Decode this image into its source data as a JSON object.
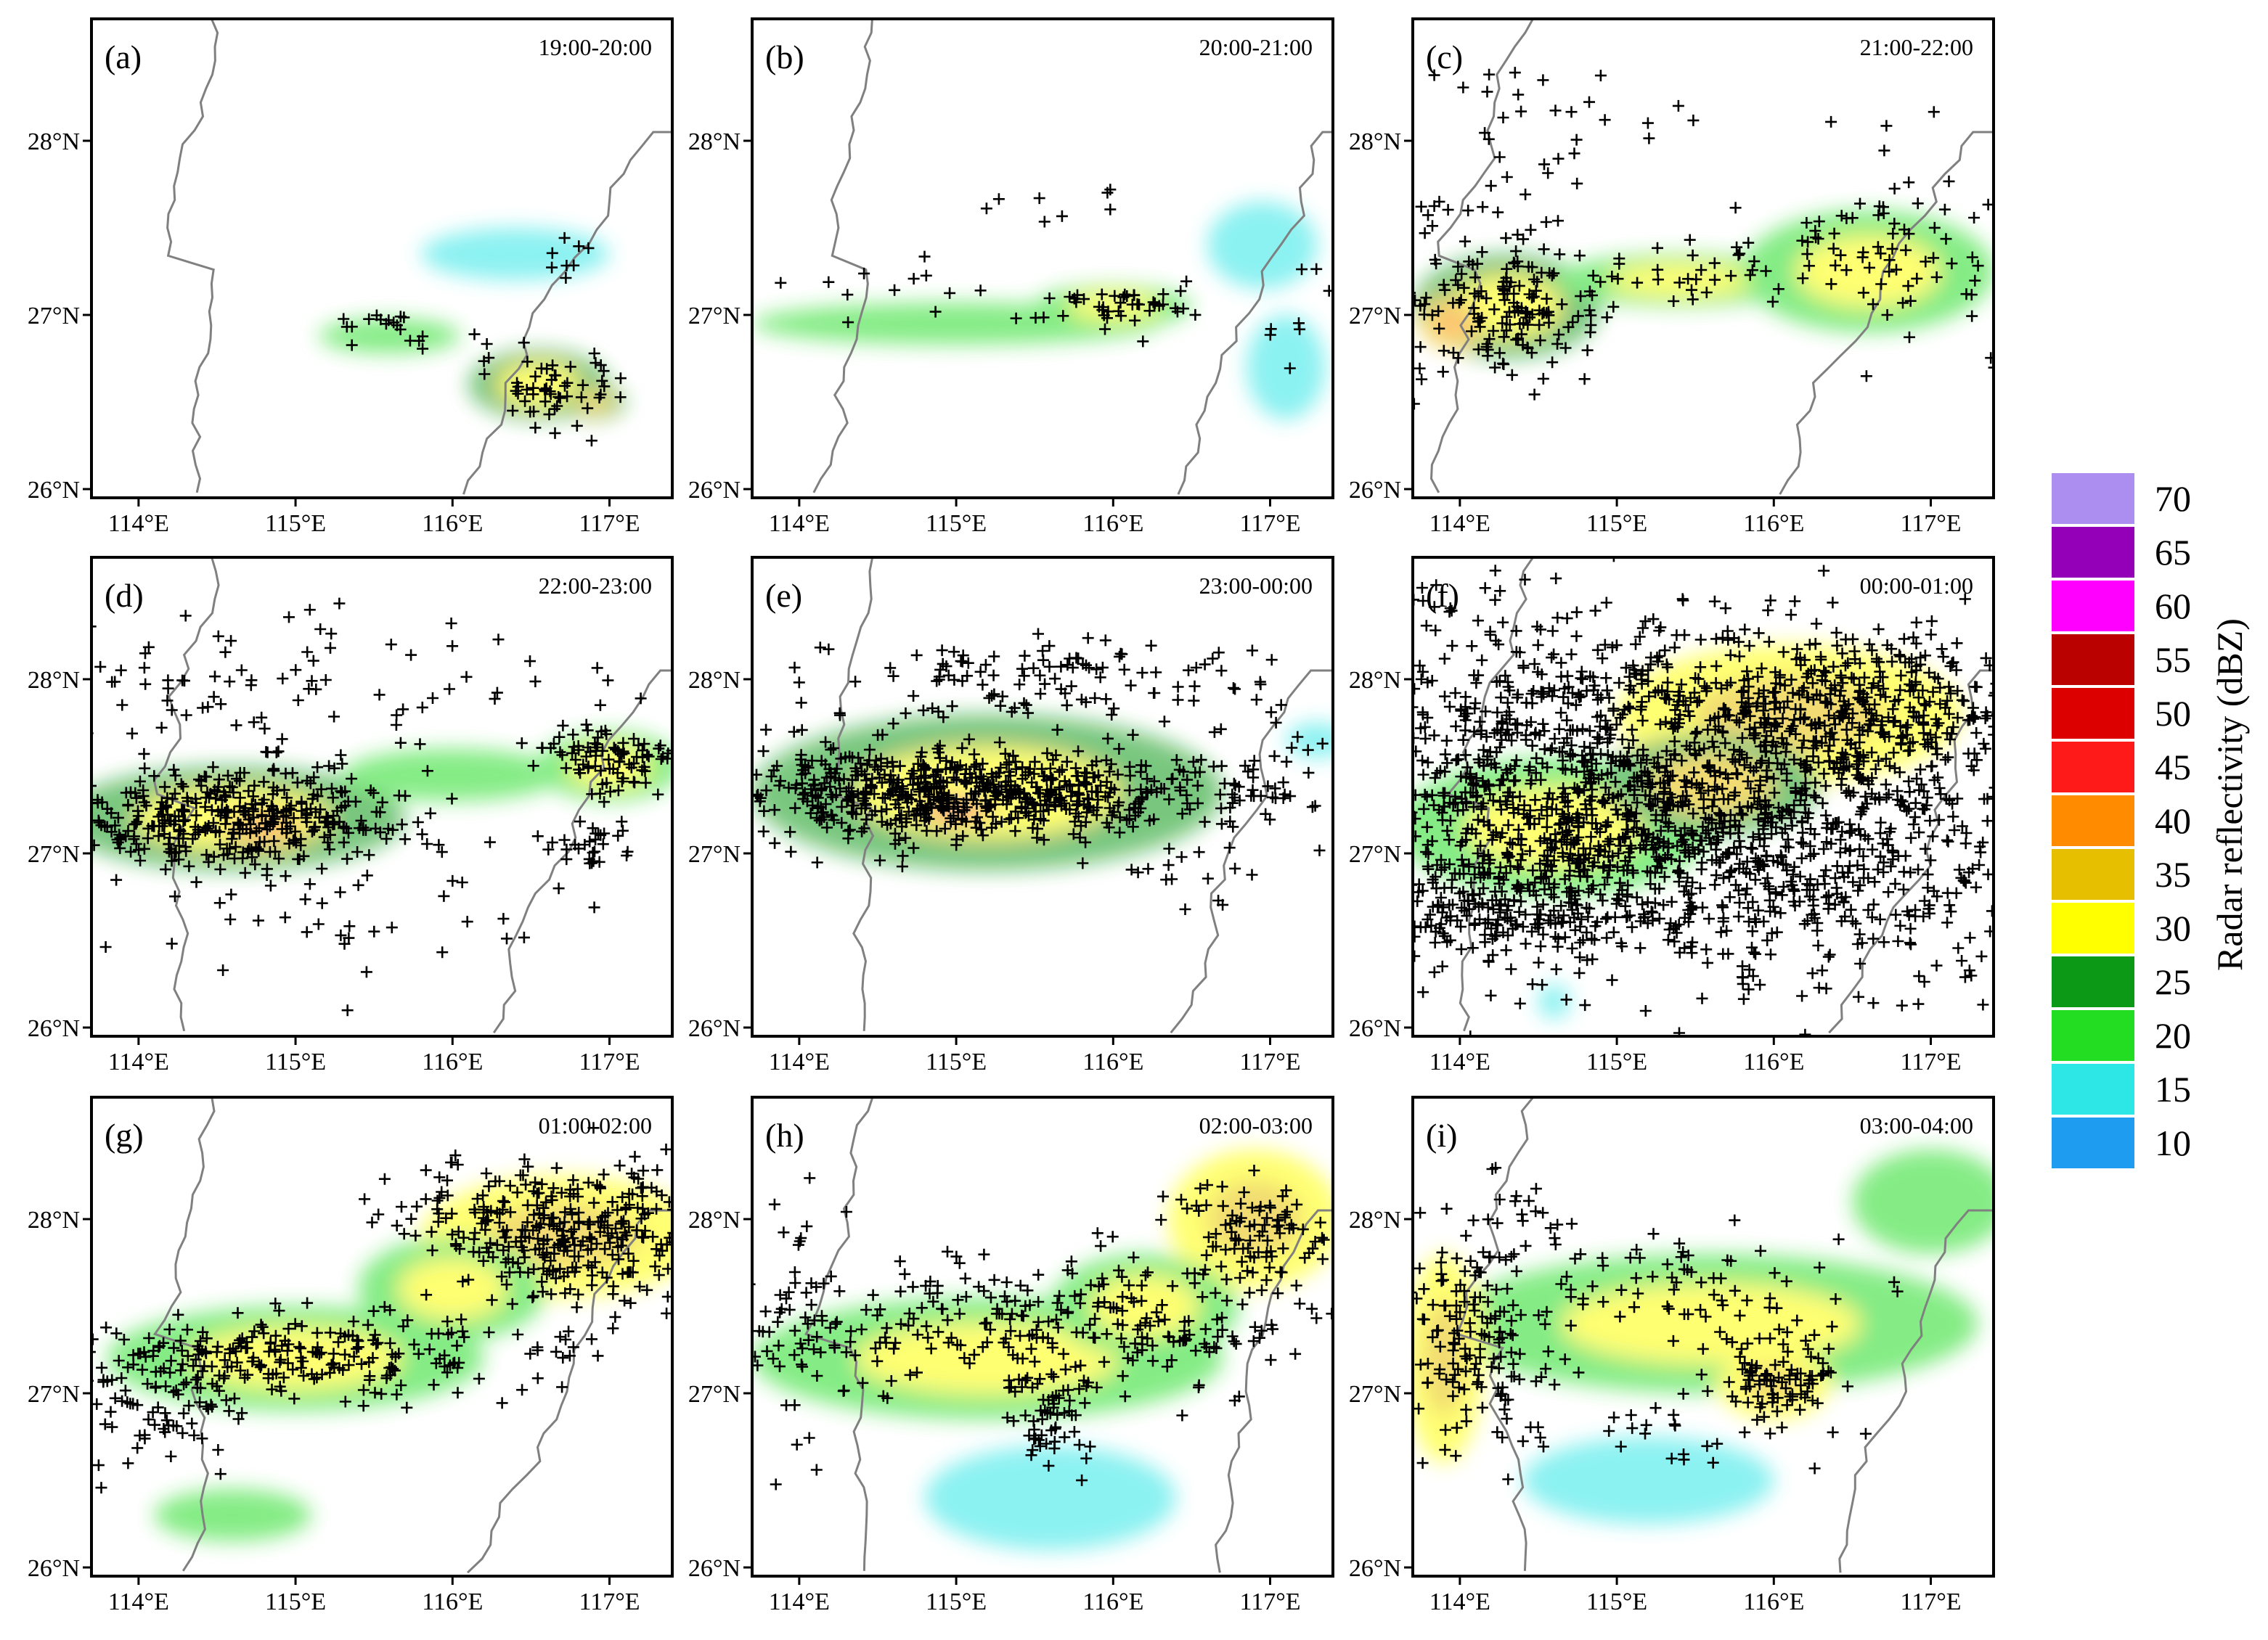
{
  "figure": {
    "colorbar": {
      "title": "Radar reflectivity (dBZ)",
      "levels": [
        {
          "value": "10",
          "color": "#1e9df0"
        },
        {
          "value": "15",
          "color": "#2de6e6"
        },
        {
          "value": "20",
          "color": "#22dd22"
        },
        {
          "value": "25",
          "color": "#0c9a16"
        },
        {
          "value": "30",
          "color": "#ffff00"
        },
        {
          "value": "35",
          "color": "#e6bf00"
        },
        {
          "value": "40",
          "color": "#ff8c00"
        },
        {
          "value": "45",
          "color": "#ff1a1a"
        },
        {
          "value": "50",
          "color": "#dd0000"
        },
        {
          "value": "55",
          "color": "#bb0000"
        },
        {
          "value": "60",
          "color": "#ff00ff"
        },
        {
          "value": "65",
          "color": "#9400b8"
        },
        {
          "value": "70",
          "color": "#ab8ef0"
        }
      ]
    },
    "axes": {
      "lon_ticks": [
        "114°E",
        "115°E",
        "116°E",
        "117°E"
      ],
      "lon_values": [
        114,
        115,
        116,
        117
      ],
      "lat_ticks": [
        "26°N",
        "27°N",
        "28°N"
      ],
      "lat_values": [
        26,
        27,
        28
      ],
      "lon_range": [
        113.7,
        117.4
      ],
      "lat_range": [
        25.95,
        28.7
      ]
    },
    "panels": [
      {
        "label": "(a)",
        "time": "19:00-20:00",
        "lightning_count": 90,
        "echo": [
          {
            "lon": 115.6,
            "lat": 26.88,
            "rlon": 0.45,
            "rlat": 0.1,
            "dbz": 20
          },
          {
            "lon": 116.55,
            "lat": 26.6,
            "rlon": 0.45,
            "rlat": 0.2,
            "dbz": 25
          },
          {
            "lon": 116.4,
            "lat": 27.35,
            "rlon": 0.6,
            "rlat": 0.15,
            "dbz": 18
          },
          {
            "lon": 116.9,
            "lat": 26.5,
            "rlon": 0.2,
            "rlat": 0.1,
            "dbz": 28
          }
        ],
        "strikes": [
          {
            "lon": 116.6,
            "lat": 26.6,
            "slon": 0.25,
            "slat": 0.12,
            "n": 55
          },
          {
            "lon": 115.5,
            "lat": 26.93,
            "slon": 0.2,
            "slat": 0.05,
            "n": 14
          },
          {
            "lon": 116.7,
            "lat": 27.3,
            "slon": 0.1,
            "slat": 0.12,
            "n": 8
          },
          {
            "lon": 116.0,
            "lat": 26.85,
            "slon": 0.15,
            "slat": 0.1,
            "n": 6
          }
        ]
      },
      {
        "label": "(b)",
        "time": "20:00-21:00",
        "lightning_count": 80,
        "echo": [
          {
            "lon": 115.0,
            "lat": 26.95,
            "rlon": 1.3,
            "rlat": 0.12,
            "dbz": 20
          },
          {
            "lon": 116.0,
            "lat": 27.05,
            "rlon": 0.5,
            "rlat": 0.12,
            "dbz": 24
          },
          {
            "lon": 116.95,
            "lat": 27.4,
            "rlon": 0.35,
            "rlat": 0.25,
            "dbz": 18
          },
          {
            "lon": 117.1,
            "lat": 26.7,
            "rlon": 0.25,
            "rlat": 0.3,
            "dbz": 18
          }
        ],
        "strikes": [
          {
            "lon": 116.05,
            "lat": 27.05,
            "slon": 0.25,
            "slat": 0.06,
            "n": 45
          },
          {
            "lon": 114.8,
            "lat": 27.15,
            "slon": 0.4,
            "slat": 0.08,
            "n": 12
          },
          {
            "lon": 115.7,
            "lat": 27.65,
            "slon": 0.25,
            "slat": 0.08,
            "n": 8
          },
          {
            "lon": 117.1,
            "lat": 26.9,
            "slon": 0.15,
            "slat": 0.3,
            "n": 8
          }
        ]
      },
      {
        "label": "(c)",
        "time": "21:00-22:00",
        "lightning_count": 320,
        "echo": [
          {
            "lon": 114.3,
            "lat": 27.05,
            "rlon": 0.6,
            "rlat": 0.3,
            "dbz": 25
          },
          {
            "lon": 115.4,
            "lat": 27.2,
            "rlon": 0.8,
            "rlat": 0.15,
            "dbz": 22
          },
          {
            "lon": 116.6,
            "lat": 27.25,
            "rlon": 0.8,
            "rlat": 0.35,
            "dbz": 22
          },
          {
            "lon": 113.95,
            "lat": 26.95,
            "rlon": 0.2,
            "rlat": 0.15,
            "dbz": 35
          }
        ],
        "strikes": [
          {
            "lon": 114.25,
            "lat": 27.05,
            "slon": 0.35,
            "slat": 0.2,
            "n": 170
          },
          {
            "lon": 116.7,
            "lat": 27.35,
            "slon": 0.45,
            "slat": 0.25,
            "n": 80
          },
          {
            "lon": 115.4,
            "lat": 27.25,
            "slon": 0.45,
            "slat": 0.1,
            "n": 30
          },
          {
            "lon": 114.2,
            "lat": 27.9,
            "slon": 0.3,
            "slat": 0.25,
            "n": 30
          },
          {
            "lon": 115.8,
            "lat": 28.1,
            "slon": 0.8,
            "slat": 0.1,
            "n": 10
          }
        ]
      },
      {
        "label": "(d)",
        "time": "22:00-23:00",
        "lightning_count": 650,
        "echo": [
          {
            "lon": 114.6,
            "lat": 27.2,
            "rlon": 1.1,
            "rlat": 0.3,
            "dbz": 25
          },
          {
            "lon": 116.0,
            "lat": 27.45,
            "rlon": 0.7,
            "rlat": 0.15,
            "dbz": 20
          },
          {
            "lon": 117.0,
            "lat": 27.5,
            "rlon": 0.45,
            "rlat": 0.2,
            "dbz": 22
          },
          {
            "lon": 114.8,
            "lat": 27.15,
            "rlon": 0.3,
            "rlat": 0.12,
            "dbz": 35
          }
        ],
        "strikes": [
          {
            "lon": 114.6,
            "lat": 27.2,
            "slon": 0.6,
            "slat": 0.15,
            "n": 380
          },
          {
            "lon": 117.0,
            "lat": 27.55,
            "slon": 0.25,
            "slat": 0.1,
            "n": 90
          },
          {
            "lon": 116.85,
            "lat": 27.05,
            "slon": 0.15,
            "slat": 0.08,
            "n": 30
          },
          {
            "lon": 114.5,
            "lat": 27.8,
            "slon": 0.8,
            "slat": 0.3,
            "n": 90
          },
          {
            "lon": 115.3,
            "lat": 26.7,
            "slon": 0.8,
            "slat": 0.2,
            "n": 40
          },
          {
            "lon": 116.3,
            "lat": 28.0,
            "slon": 0.8,
            "slat": 0.15,
            "n": 20
          }
        ]
      },
      {
        "label": "(e)",
        "time": "23:00-00:00",
        "lightning_count": 900,
        "echo": [
          {
            "lon": 115.2,
            "lat": 27.35,
            "rlon": 1.5,
            "rlat": 0.45,
            "dbz": 25
          },
          {
            "lon": 115.0,
            "lat": 27.25,
            "rlon": 0.3,
            "rlat": 0.1,
            "dbz": 38
          },
          {
            "lon": 117.3,
            "lat": 27.65,
            "rlon": 0.2,
            "rlat": 0.1,
            "dbz": 18
          }
        ],
        "strikes": [
          {
            "lon": 115.2,
            "lat": 27.35,
            "slon": 0.9,
            "slat": 0.12,
            "n": 650
          },
          {
            "lon": 115.7,
            "lat": 28.0,
            "slon": 0.7,
            "slat": 0.12,
            "n": 120
          },
          {
            "lon": 114.3,
            "lat": 27.4,
            "slon": 0.4,
            "slat": 0.2,
            "n": 60
          },
          {
            "lon": 116.4,
            "lat": 26.9,
            "slon": 0.3,
            "slat": 0.2,
            "n": 20
          },
          {
            "lon": 117.2,
            "lat": 27.6,
            "slon": 0.15,
            "slat": 0.08,
            "n": 8
          }
        ]
      },
      {
        "label": "(f)",
        "time": "00:00-01:00",
        "lightning_count": 2400,
        "echo": [
          {
            "lon": 116.1,
            "lat": 27.8,
            "rlon": 1.1,
            "rlat": 0.4,
            "dbz": 30
          },
          {
            "lon": 114.6,
            "lat": 27.15,
            "rlon": 1.0,
            "rlat": 0.4,
            "dbz": 24
          },
          {
            "lon": 115.6,
            "lat": 27.4,
            "rlon": 0.7,
            "rlat": 0.3,
            "dbz": 28
          },
          {
            "lon": 114.6,
            "lat": 26.15,
            "rlon": 0.1,
            "rlat": 0.1,
            "dbz": 18
          }
        ],
        "strikes": [
          {
            "lon": 116.3,
            "lat": 27.8,
            "slon": 0.9,
            "slat": 0.25,
            "n": 700
          },
          {
            "lon": 115.0,
            "lat": 27.2,
            "slon": 1.0,
            "slat": 0.25,
            "n": 500
          },
          {
            "lon": 116.1,
            "lat": 26.9,
            "slon": 1.1,
            "slat": 0.35,
            "n": 600
          },
          {
            "lon": 114.3,
            "lat": 27.7,
            "slon": 0.6,
            "slat": 0.45,
            "n": 350
          },
          {
            "lon": 114.3,
            "lat": 26.7,
            "slon": 0.5,
            "slat": 0.2,
            "n": 250
          }
        ]
      },
      {
        "label": "(g)",
        "time": "01:00-02:00",
        "lightning_count": 700,
        "echo": [
          {
            "lon": 116.7,
            "lat": 27.9,
            "rlon": 0.9,
            "rlat": 0.35,
            "dbz": 30
          },
          {
            "lon": 115.0,
            "lat": 27.2,
            "rlon": 1.2,
            "rlat": 0.3,
            "dbz": 24
          },
          {
            "lon": 114.6,
            "lat": 26.3,
            "rlon": 0.5,
            "rlat": 0.15,
            "dbz": 20
          },
          {
            "lon": 116.0,
            "lat": 27.6,
            "rlon": 0.6,
            "rlat": 0.3,
            "dbz": 22
          }
        ],
        "strikes": [
          {
            "lon": 116.8,
            "lat": 27.9,
            "slon": 0.45,
            "slat": 0.2,
            "n": 300
          },
          {
            "lon": 115.0,
            "lat": 27.2,
            "slon": 0.9,
            "slat": 0.12,
            "n": 250
          },
          {
            "lon": 114.2,
            "lat": 26.9,
            "slon": 0.3,
            "slat": 0.15,
            "n": 60
          },
          {
            "lon": 116.0,
            "lat": 28.1,
            "slon": 0.3,
            "slat": 0.12,
            "n": 40
          }
        ]
      },
      {
        "label": "(h)",
        "time": "02:00-03:00",
        "lightning_count": 500,
        "echo": [
          {
            "lon": 115.2,
            "lat": 27.2,
            "rlon": 1.5,
            "rlat": 0.35,
            "dbz": 22
          },
          {
            "lon": 116.9,
            "lat": 28.0,
            "rlon": 0.55,
            "rlat": 0.4,
            "dbz": 30
          },
          {
            "lon": 115.6,
            "lat": 26.4,
            "rlon": 0.8,
            "rlat": 0.3,
            "dbz": 16
          },
          {
            "lon": 116.2,
            "lat": 27.5,
            "rlon": 0.6,
            "rlat": 0.3,
            "dbz": 22
          }
        ],
        "strikes": [
          {
            "lon": 115.4,
            "lat": 27.4,
            "slon": 0.9,
            "slat": 0.2,
            "n": 250
          },
          {
            "lon": 116.9,
            "lat": 27.85,
            "slon": 0.25,
            "slat": 0.2,
            "n": 100
          },
          {
            "lon": 115.6,
            "lat": 26.85,
            "slon": 0.15,
            "slat": 0.15,
            "n": 60
          },
          {
            "lon": 116.5,
            "lat": 27.3,
            "slon": 0.2,
            "slat": 0.05,
            "n": 30
          },
          {
            "lon": 114.0,
            "lat": 27.3,
            "slon": 0.2,
            "slat": 0.4,
            "n": 30
          }
        ]
      },
      {
        "label": "(i)",
        "time": "03:00-04:00",
        "lightning_count": 450,
        "echo": [
          {
            "lon": 115.6,
            "lat": 27.4,
            "rlon": 1.7,
            "rlat": 0.4,
            "dbz": 22
          },
          {
            "lon": 116.0,
            "lat": 27.05,
            "rlon": 0.35,
            "rlat": 0.2,
            "dbz": 30
          },
          {
            "lon": 113.9,
            "lat": 27.2,
            "rlon": 0.25,
            "rlat": 0.6,
            "dbz": 30
          },
          {
            "lon": 117.0,
            "lat": 28.1,
            "rlon": 0.5,
            "rlat": 0.3,
            "dbz": 20
          },
          {
            "lon": 115.2,
            "lat": 26.5,
            "rlon": 0.8,
            "rlat": 0.25,
            "dbz": 16
          }
        ],
        "strikes": [
          {
            "lon": 114.1,
            "lat": 27.3,
            "slon": 0.25,
            "slat": 0.35,
            "n": 150
          },
          {
            "lon": 116.0,
            "lat": 27.1,
            "slon": 0.2,
            "slat": 0.12,
            "n": 90
          },
          {
            "lon": 115.4,
            "lat": 27.6,
            "slon": 0.7,
            "slat": 0.15,
            "n": 80
          },
          {
            "lon": 115.3,
            "lat": 26.75,
            "slon": 0.6,
            "slat": 0.12,
            "n": 30
          },
          {
            "lon": 114.3,
            "lat": 28.1,
            "slon": 0.2,
            "slat": 0.12,
            "n": 15
          }
        ]
      }
    ]
  }
}
